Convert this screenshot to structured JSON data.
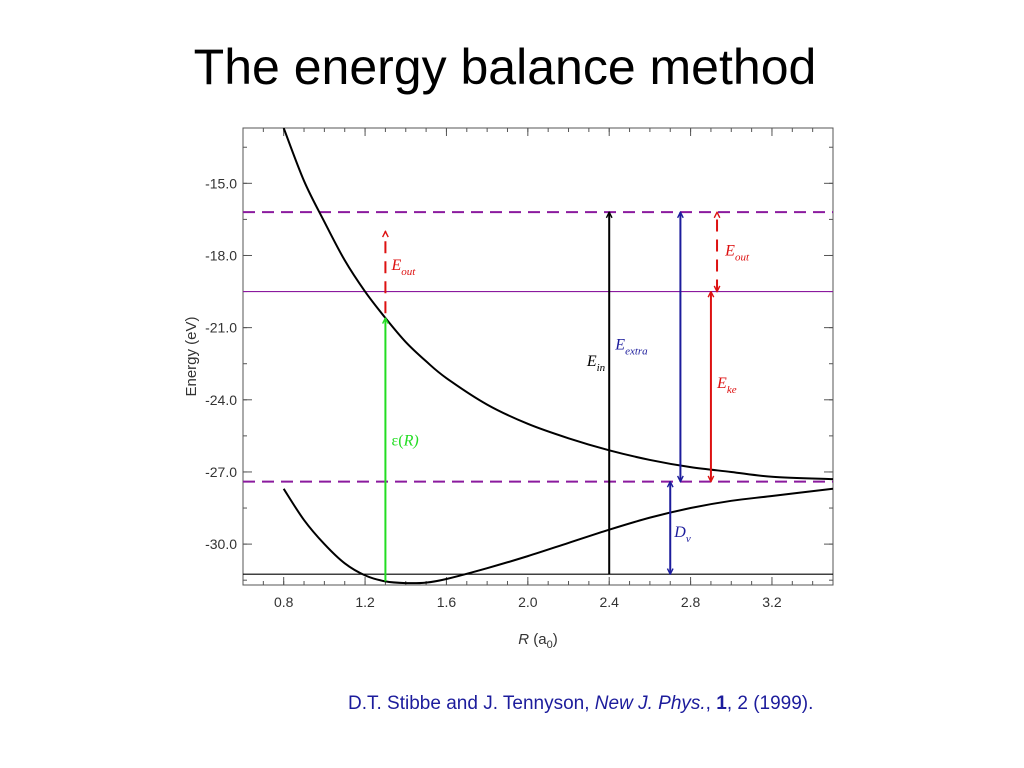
{
  "slide": {
    "title": "The energy balance method"
  },
  "citation": {
    "authors": "D.T. Stibbe and J. Tennyson, ",
    "journal": "New J. Phys.",
    "sep1": ", ",
    "volume": "1",
    "sep2": ", 2 (1999)."
  },
  "chart_data": {
    "type": "line",
    "xlabel": "R (a0)",
    "ylabel": "Energy (eV)",
    "xlim": [
      0.6,
      3.5
    ],
    "ylim": [
      -31.7,
      -12.7
    ],
    "xticks": [
      "0.8",
      "1.2",
      "1.6",
      "2.0",
      "2.4",
      "2.8",
      "3.2"
    ],
    "yticks": [
      "-15.0",
      "-18.0",
      "-21.0",
      "-24.0",
      "-27.0",
      "-30.0"
    ],
    "grid": false,
    "series": [
      {
        "key": "upper",
        "color": "#000000",
        "x": [
          0.8,
          0.9,
          1.0,
          1.1,
          1.2,
          1.3,
          1.4,
          1.5,
          1.6,
          1.8,
          2.0,
          2.2,
          2.4,
          2.6,
          2.8,
          3.0,
          3.2,
          3.5
        ],
        "y": [
          -12.7,
          -14.9,
          -16.6,
          -18.2,
          -19.5,
          -20.6,
          -21.6,
          -22.4,
          -23.1,
          -24.2,
          -25.0,
          -25.6,
          -26.1,
          -26.5,
          -26.8,
          -27.0,
          -27.2,
          -27.3
        ]
      },
      {
        "key": "lower",
        "color": "#000000",
        "x": [
          0.8,
          0.9,
          1.0,
          1.1,
          1.2,
          1.3,
          1.4,
          1.5,
          1.6,
          1.8,
          2.0,
          2.2,
          2.4,
          2.6,
          2.8,
          3.0,
          3.2,
          3.5
        ],
        "y": [
          -27.7,
          -29.0,
          -30.0,
          -30.8,
          -31.3,
          -31.55,
          -31.62,
          -31.6,
          -31.45,
          -31.0,
          -30.5,
          -29.95,
          -29.4,
          -28.9,
          -28.5,
          -28.2,
          -28.0,
          -27.7
        ]
      }
    ],
    "hlines": [
      {
        "key": "upper-dashed",
        "y": -16.2,
        "color": "#8b1a9e",
        "style": "dashed"
      },
      {
        "key": "upper-solid",
        "y": -19.5,
        "color": "#8b1a9e",
        "style": "solid"
      },
      {
        "key": "lower-dashed",
        "y": -27.4,
        "color": "#8b1a9e",
        "style": "dashed"
      },
      {
        "key": "ground-solid",
        "y": -31.25,
        "color": "#000000",
        "style": "solid"
      }
    ],
    "arrows": [
      {
        "key": "epsilon",
        "x": 1.3,
        "y1": -31.55,
        "y2": -20.6,
        "color": "#22dd22",
        "style": "solid",
        "head": "end"
      },
      {
        "key": "eout-left",
        "x": 1.3,
        "y1": -20.4,
        "y2": -17.0,
        "color": "#dd1111",
        "style": "dashed",
        "head": "end"
      },
      {
        "key": "ein",
        "x": 2.4,
        "y1": -31.25,
        "y2": -16.2,
        "color": "#000000",
        "style": "solid",
        "head": "end"
      },
      {
        "key": "eextra",
        "x": 2.75,
        "y1": -27.4,
        "y2": -16.2,
        "color": "#1c1c9c",
        "style": "solid",
        "head": "both"
      },
      {
        "key": "eke",
        "x": 2.9,
        "y1": -27.4,
        "y2": -19.5,
        "color": "#dd1111",
        "style": "solid",
        "head": "both"
      },
      {
        "key": "eout-right",
        "x": 2.93,
        "y1": -19.5,
        "y2": -16.2,
        "color": "#dd1111",
        "style": "dashed",
        "head": "both"
      },
      {
        "key": "dv",
        "x": 2.7,
        "y1": -31.25,
        "y2": -27.4,
        "color": "#1c1c9c",
        "style": "solid",
        "head": "both"
      }
    ],
    "annotations": [
      {
        "key": "eout-left",
        "main": "E",
        "sub": "out",
        "prefix": "",
        "suffix": "",
        "x": 1.33,
        "y": -18.6,
        "color": "#dd1111"
      },
      {
        "key": "eout-right",
        "main": "E",
        "sub": "out",
        "prefix": "",
        "suffix": "",
        "x": 2.97,
        "y": -18.0,
        "color": "#dd1111"
      },
      {
        "key": "ein",
        "main": "E",
        "sub": "in",
        "prefix": "",
        "suffix": "",
        "x": 2.29,
        "y": -22.6,
        "color": "#000000"
      },
      {
        "key": "eextra",
        "main": "E",
        "sub": "extra",
        "prefix": "",
        "suffix": "",
        "x": 2.43,
        "y": -21.9,
        "color": "#1c1c9c"
      },
      {
        "key": "eke",
        "main": "E",
        "sub": "ke",
        "prefix": "",
        "suffix": "",
        "x": 2.93,
        "y": -23.5,
        "color": "#dd1111"
      },
      {
        "key": "epsilon",
        "main": "",
        "sub": "",
        "prefix": "ε(",
        "suffix": "R)",
        "x": 1.33,
        "y": -25.9,
        "color": "#22dd22"
      },
      {
        "key": "dv",
        "main": "D",
        "sub": "v",
        "prefix": "",
        "suffix": "",
        "x": 2.72,
        "y": -29.7,
        "color": "#1c1c9c"
      }
    ]
  }
}
